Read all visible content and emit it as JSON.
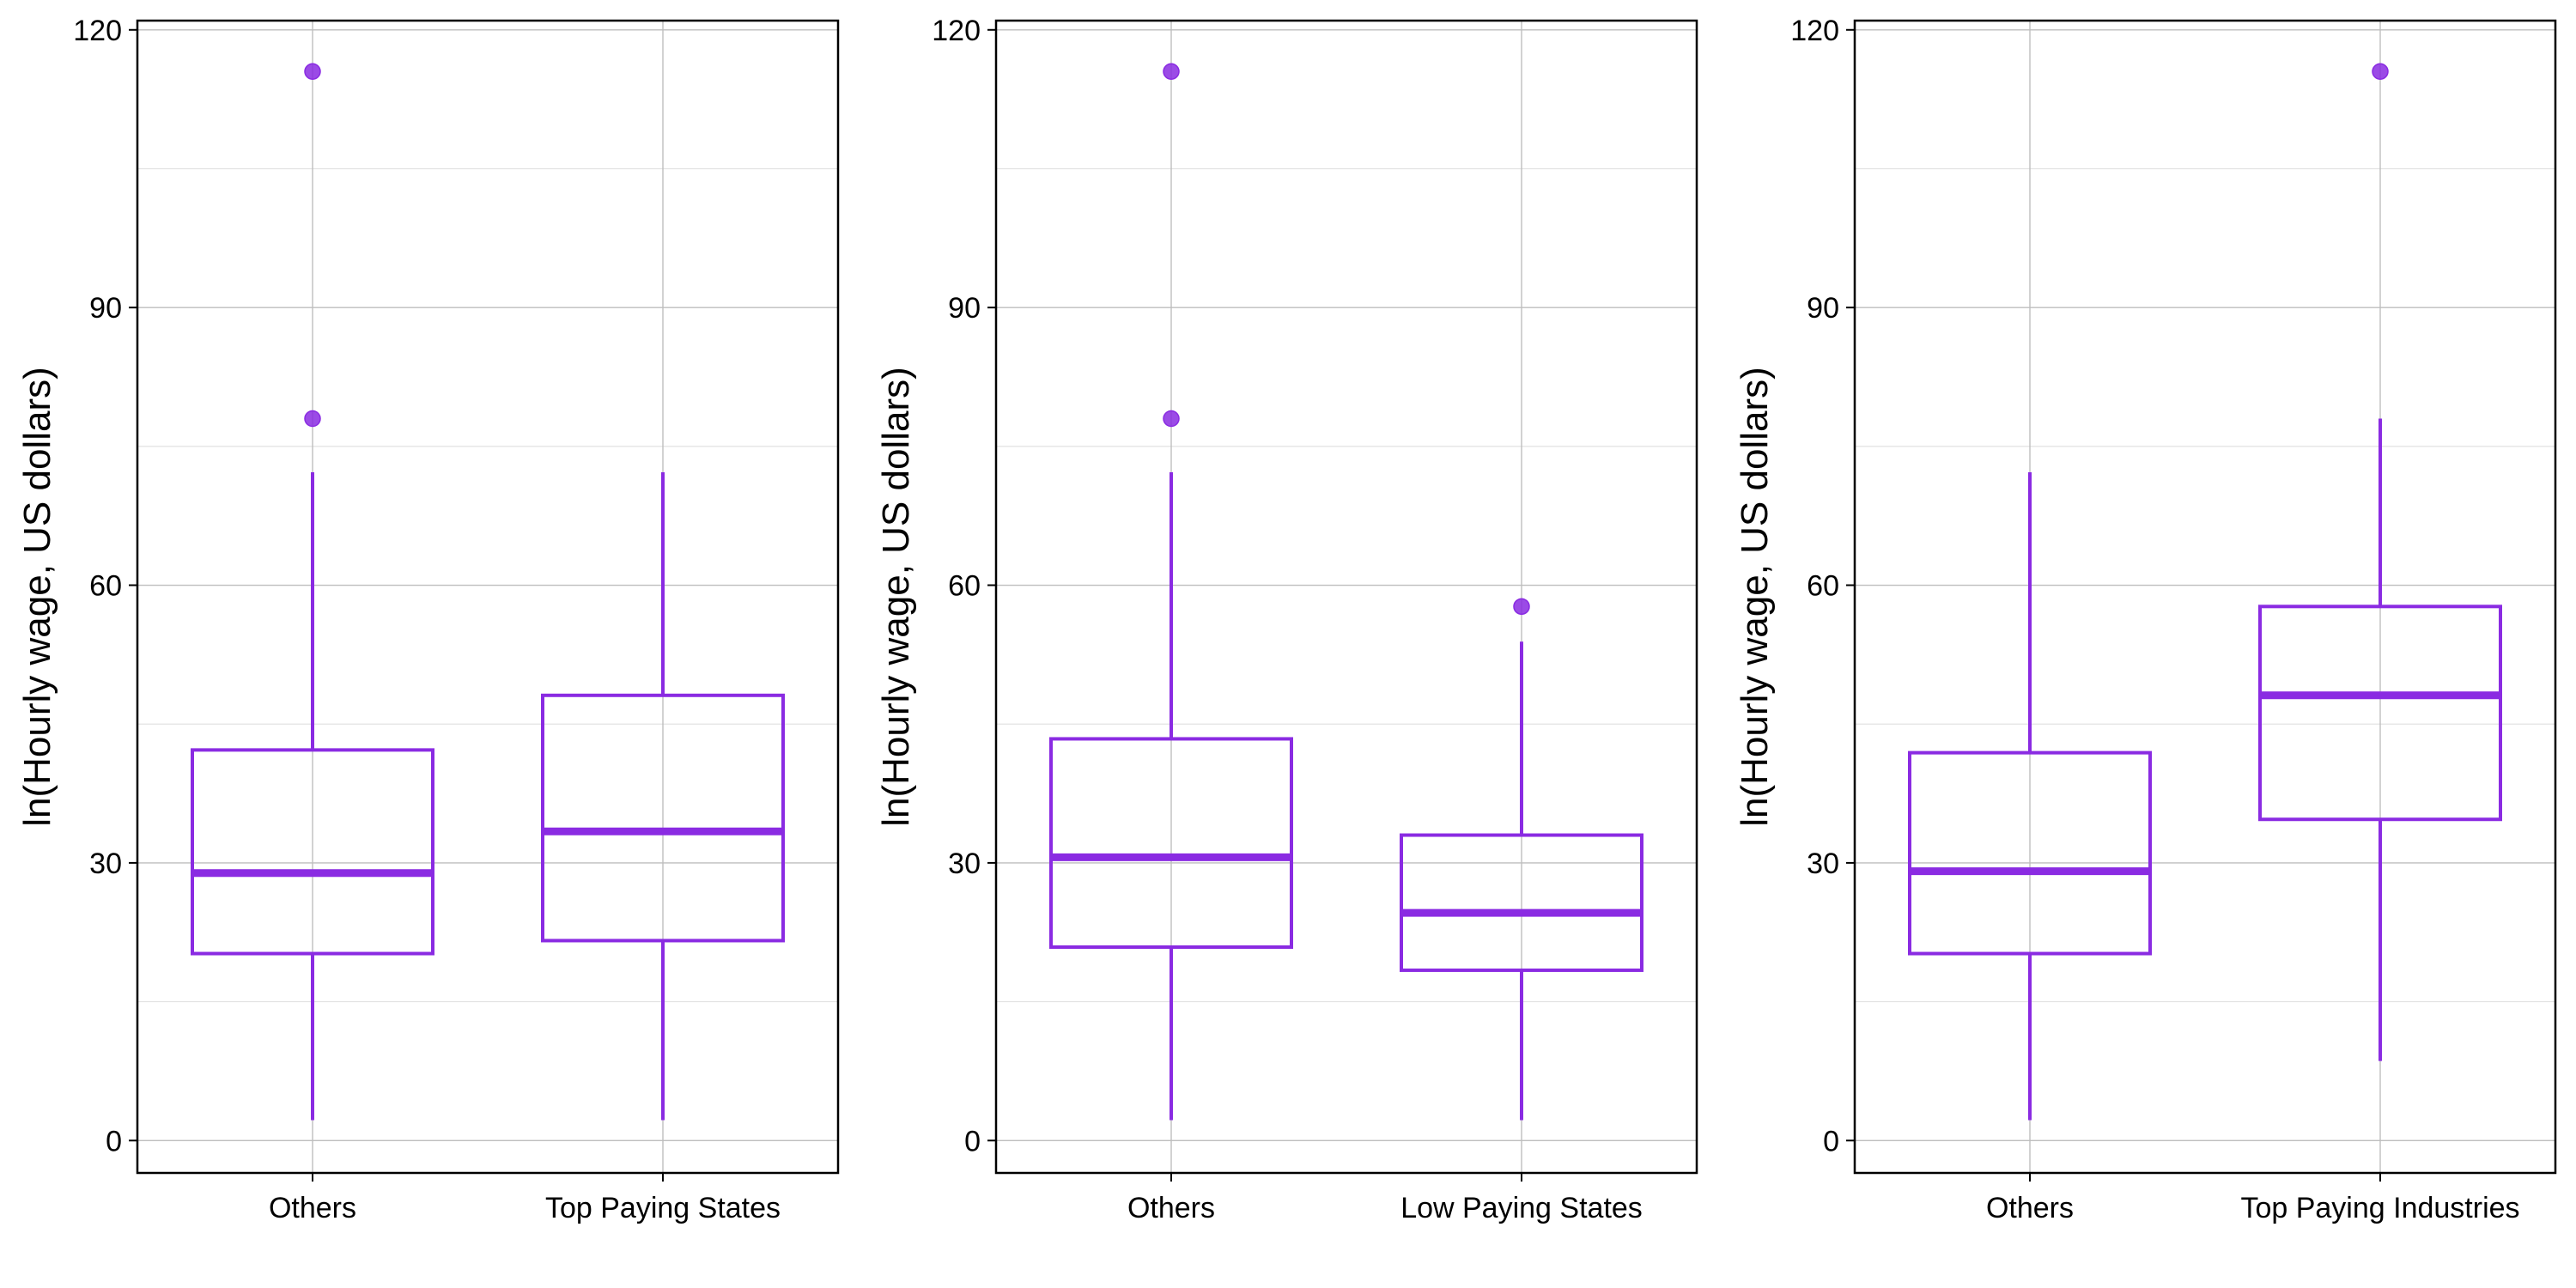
{
  "colors": {
    "box": "#8A2BE2",
    "outlier": "#8A2BE2",
    "grid_major": "#BEBEBE",
    "grid_minor": "#E2E2E2",
    "frame": "#000000",
    "background": "#FFFFFF"
  },
  "chart_data": [
    {
      "type": "box",
      "ylabel": "ln(Hourly wage, US dollars)",
      "ylim": [
        -3.5,
        121
      ],
      "yticks": [
        "0",
        "30",
        "60",
        "90",
        "120"
      ],
      "grid": true,
      "categories": [
        "Others",
        "Top Paying States"
      ],
      "boxes": [
        {
          "category": "Others",
          "whisker_low": 2.2,
          "q1": 20.2,
          "median": 28.9,
          "q3": 42.2,
          "whisker_high": 72.2,
          "outliers": [
            78.0,
            115.5
          ]
        },
        {
          "category": "Top Paying States",
          "whisker_low": 2.2,
          "q1": 21.6,
          "median": 33.4,
          "q3": 48.1,
          "whisker_high": 72.2,
          "outliers": []
        }
      ]
    },
    {
      "type": "box",
      "ylabel": "ln(Hourly wage, US dollars)",
      "ylim": [
        -3.5,
        121
      ],
      "yticks": [
        "0",
        "30",
        "60",
        "90",
        "120"
      ],
      "grid": true,
      "categories": [
        "Others",
        "Low Paying States"
      ],
      "boxes": [
        {
          "category": "Others",
          "whisker_low": 2.2,
          "q1": 20.9,
          "median": 30.6,
          "q3": 43.4,
          "whisker_high": 72.2,
          "outliers": [
            78.0,
            115.5
          ]
        },
        {
          "category": "Low Paying States",
          "whisker_low": 2.2,
          "q1": 18.4,
          "median": 24.6,
          "q3": 33.0,
          "whisker_high": 53.9,
          "outliers": [
            57.7
          ]
        }
      ]
    },
    {
      "type": "box",
      "ylabel": "ln(Hourly wage, US dollars)",
      "ylim": [
        -3.5,
        121
      ],
      "yticks": [
        "0",
        "30",
        "60",
        "90",
        "120"
      ],
      "grid": true,
      "categories": [
        "Others",
        "Top Paying Industries"
      ],
      "boxes": [
        {
          "category": "Others",
          "whisker_low": 2.2,
          "q1": 20.2,
          "median": 29.1,
          "q3": 41.9,
          "whisker_high": 72.2,
          "outliers": []
        },
        {
          "category": "Top Paying Industries",
          "whisker_low": 8.6,
          "q1": 34.7,
          "median": 48.1,
          "q3": 57.7,
          "whisker_high": 78.0,
          "outliers": [
            115.5
          ]
        }
      ]
    }
  ]
}
